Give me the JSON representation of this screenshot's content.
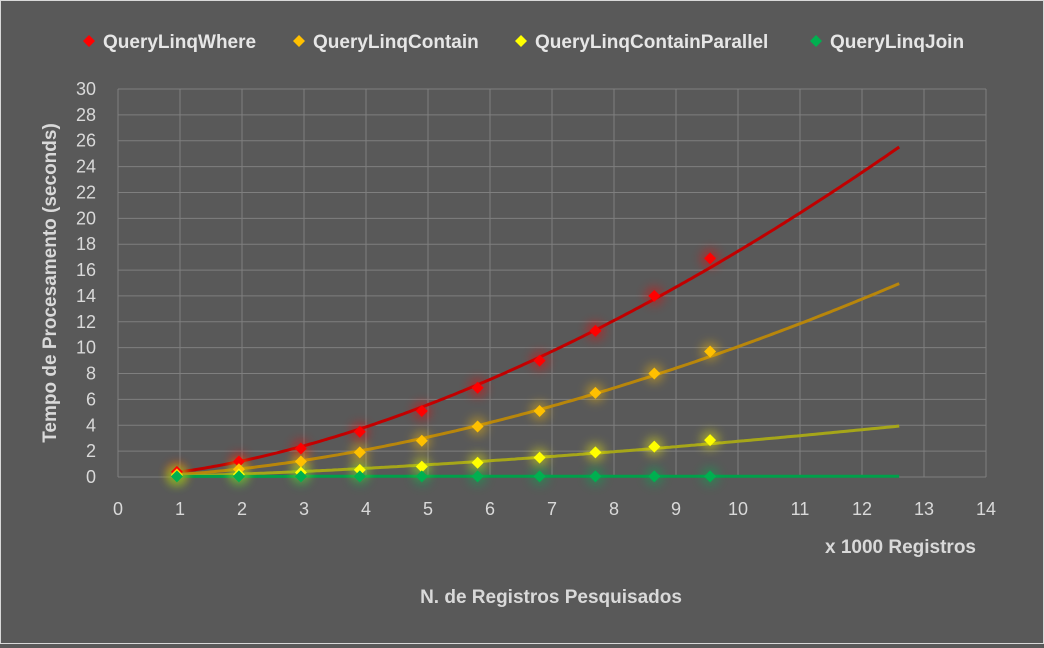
{
  "chart_data": {
    "type": "scatter",
    "xlabel": "N. de Registros Pesquisados",
    "xunit": "x 1000 Registros",
    "ylabel": "Tempo de Procesamento (seconds)",
    "xlim": [
      0,
      14
    ],
    "ylim": [
      0,
      30
    ],
    "xticks": [
      0,
      1,
      2,
      3,
      4,
      5,
      6,
      7,
      8,
      9,
      10,
      11,
      12,
      13,
      14
    ],
    "yticks": [
      0,
      2,
      4,
      6,
      8,
      10,
      12,
      14,
      16,
      18,
      20,
      22,
      24,
      26,
      28,
      30
    ],
    "grid": true,
    "legend": "top",
    "series": [
      {
        "name": "QueryLinqWhere",
        "color": "#ff0000",
        "trend_color": "#c00000",
        "x": [
          0.95,
          1.95,
          2.95,
          3.9,
          4.9,
          5.8,
          6.8,
          7.7,
          8.65,
          9.55
        ],
        "y": [
          0.4,
          1.2,
          2.2,
          3.5,
          5.1,
          6.9,
          9.0,
          11.3,
          14.0,
          16.9
        ],
        "trend_end": [
          12.6,
          28.0
        ]
      },
      {
        "name": "QueryLinqContain",
        "color": "#ffc000",
        "trend_color": "#b8860b",
        "x": [
          0.95,
          1.95,
          2.95,
          3.9,
          4.9,
          5.8,
          6.8,
          7.7,
          8.65,
          9.55
        ],
        "y": [
          0.2,
          0.6,
          1.2,
          1.9,
          2.8,
          3.9,
          5.1,
          6.5,
          8.0,
          9.7
        ],
        "trend_end": [
          12.6,
          16.1
        ]
      },
      {
        "name": "QueryLinqContainParallel",
        "color": "#ffff00",
        "trend_color": "#a6a619",
        "x": [
          0.95,
          1.95,
          2.95,
          3.9,
          4.9,
          5.8,
          6.8,
          7.7,
          8.65,
          9.55
        ],
        "y": [
          0.1,
          0.2,
          0.35,
          0.55,
          0.8,
          1.1,
          1.5,
          1.9,
          2.35,
          2.85
        ],
        "trend_end": [
          12.6,
          4.75
        ]
      },
      {
        "name": "QueryLinqJoin",
        "color": "#00b050",
        "trend_color": "#00a04a",
        "x": [
          0.95,
          1.95,
          2.95,
          3.9,
          4.9,
          5.8,
          6.8,
          7.7,
          8.65,
          9.55
        ],
        "y": [
          0.05,
          0.05,
          0.05,
          0.05,
          0.05,
          0.05,
          0.05,
          0.05,
          0.05,
          0.05
        ],
        "trend_end": [
          12.6,
          0.1
        ]
      }
    ]
  }
}
